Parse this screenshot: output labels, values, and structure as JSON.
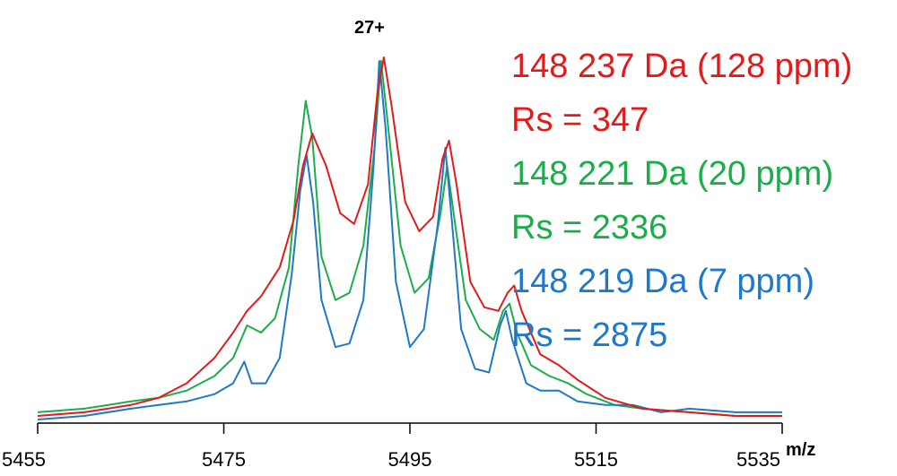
{
  "chart_data": {
    "type": "line",
    "title": "",
    "annotation": "27+",
    "xlabel": "m/z",
    "ylabel": "",
    "xlim": [
      5455,
      5535
    ],
    "ylim": [
      0,
      1.0
    ],
    "x_ticks": [
      5455,
      5475,
      5495,
      5515,
      5535
    ],
    "x_tick_labels": [
      "5455",
      "5475",
      "5495",
      "5515",
      "5535"
    ],
    "grid": false,
    "legend_position": "top-right",
    "series": [
      {
        "color": "#e31a1c",
        "labels": [
          "148 237 Da (128 ppm)",
          "Rs = 347"
        ],
        "points": [
          [
            5455,
            0.01
          ],
          [
            5460,
            0.02
          ],
          [
            5465,
            0.04
          ],
          [
            5468,
            0.06
          ],
          [
            5471,
            0.1
          ],
          [
            5474,
            0.17
          ],
          [
            5476,
            0.24
          ],
          [
            5477.5,
            0.3
          ],
          [
            5479,
            0.34
          ],
          [
            5481,
            0.42
          ],
          [
            5482.5,
            0.55
          ],
          [
            5483.5,
            0.7
          ],
          [
            5484.5,
            0.79
          ],
          [
            5486,
            0.7
          ],
          [
            5487.5,
            0.57
          ],
          [
            5489,
            0.54
          ],
          [
            5490.5,
            0.65
          ],
          [
            5491.5,
            0.9
          ],
          [
            5492.2,
            1.0
          ],
          [
            5493,
            0.87
          ],
          [
            5494.5,
            0.6
          ],
          [
            5496,
            0.52
          ],
          [
            5497.5,
            0.56
          ],
          [
            5498.5,
            0.72
          ],
          [
            5499.2,
            0.77
          ],
          [
            5500,
            0.65
          ],
          [
            5501.5,
            0.38
          ],
          [
            5503,
            0.31
          ],
          [
            5504.5,
            0.3
          ],
          [
            5505.5,
            0.35
          ],
          [
            5506.2,
            0.37
          ],
          [
            5507,
            0.3
          ],
          [
            5509,
            0.18
          ],
          [
            5511,
            0.15
          ],
          [
            5513,
            0.11
          ],
          [
            5516,
            0.06
          ],
          [
            5520,
            0.03
          ],
          [
            5525,
            0.02
          ],
          [
            5530,
            0.01
          ],
          [
            5535,
            0.01
          ]
        ]
      },
      {
        "color": "#1aae4a",
        "labels": [
          "148 221 Da (20 ppm)",
          "Rs = 2336"
        ],
        "points": [
          [
            5455,
            0.02
          ],
          [
            5460,
            0.03
          ],
          [
            5465,
            0.05
          ],
          [
            5468,
            0.06
          ],
          [
            5471,
            0.08
          ],
          [
            5474,
            0.12
          ],
          [
            5476,
            0.17
          ],
          [
            5477.5,
            0.26
          ],
          [
            5479,
            0.24
          ],
          [
            5480.5,
            0.28
          ],
          [
            5482,
            0.42
          ],
          [
            5483,
            0.7
          ],
          [
            5483.8,
            0.88
          ],
          [
            5484.5,
            0.78
          ],
          [
            5485.5,
            0.45
          ],
          [
            5487,
            0.33
          ],
          [
            5488.5,
            0.35
          ],
          [
            5490,
            0.48
          ],
          [
            5491.2,
            0.75
          ],
          [
            5491.9,
            0.99
          ],
          [
            5492.7,
            0.8
          ],
          [
            5494,
            0.48
          ],
          [
            5495.5,
            0.35
          ],
          [
            5497,
            0.39
          ],
          [
            5498.3,
            0.57
          ],
          [
            5499,
            0.7
          ],
          [
            5499.8,
            0.55
          ],
          [
            5501,
            0.33
          ],
          [
            5502.5,
            0.25
          ],
          [
            5504,
            0.22
          ],
          [
            5505,
            0.3
          ],
          [
            5505.7,
            0.32
          ],
          [
            5506.5,
            0.24
          ],
          [
            5508,
            0.15
          ],
          [
            5510,
            0.12
          ],
          [
            5512,
            0.1
          ],
          [
            5514,
            0.07
          ],
          [
            5517,
            0.04
          ],
          [
            5520,
            0.03
          ],
          [
            5525,
            0.02
          ],
          [
            5530,
            0.01
          ],
          [
            5535,
            0.01
          ]
        ]
      },
      {
        "color": "#1f78c8",
        "labels": [
          "148 219 Da (7 ppm)",
          "Rs = 2875"
        ],
        "points": [
          [
            5455,
            0.0
          ],
          [
            5460,
            0.01
          ],
          [
            5465,
            0.03
          ],
          [
            5468,
            0.04
          ],
          [
            5471,
            0.05
          ],
          [
            5474,
            0.07
          ],
          [
            5476,
            0.1
          ],
          [
            5477.2,
            0.16
          ],
          [
            5478,
            0.1
          ],
          [
            5479.5,
            0.1
          ],
          [
            5481,
            0.17
          ],
          [
            5482.3,
            0.4
          ],
          [
            5483.2,
            0.63
          ],
          [
            5483.9,
            0.73
          ],
          [
            5484.6,
            0.6
          ],
          [
            5485.5,
            0.33
          ],
          [
            5487,
            0.2
          ],
          [
            5488.5,
            0.21
          ],
          [
            5490,
            0.33
          ],
          [
            5491.1,
            0.7
          ],
          [
            5491.7,
            0.99
          ],
          [
            5492.4,
            0.8
          ],
          [
            5493.5,
            0.38
          ],
          [
            5495,
            0.2
          ],
          [
            5496.5,
            0.25
          ],
          [
            5498,
            0.54
          ],
          [
            5498.8,
            0.75
          ],
          [
            5499.5,
            0.55
          ],
          [
            5500.5,
            0.25
          ],
          [
            5502,
            0.14
          ],
          [
            5503.5,
            0.13
          ],
          [
            5504.7,
            0.26
          ],
          [
            5505.3,
            0.3
          ],
          [
            5506,
            0.22
          ],
          [
            5507.5,
            0.1
          ],
          [
            5509,
            0.08
          ],
          [
            5511,
            0.08
          ],
          [
            5513,
            0.05
          ],
          [
            5516,
            0.04
          ],
          [
            5519,
            0.04
          ],
          [
            5522,
            0.02
          ],
          [
            5525,
            0.03
          ],
          [
            5530,
            0.02
          ],
          [
            5535,
            0.02
          ]
        ]
      }
    ]
  }
}
